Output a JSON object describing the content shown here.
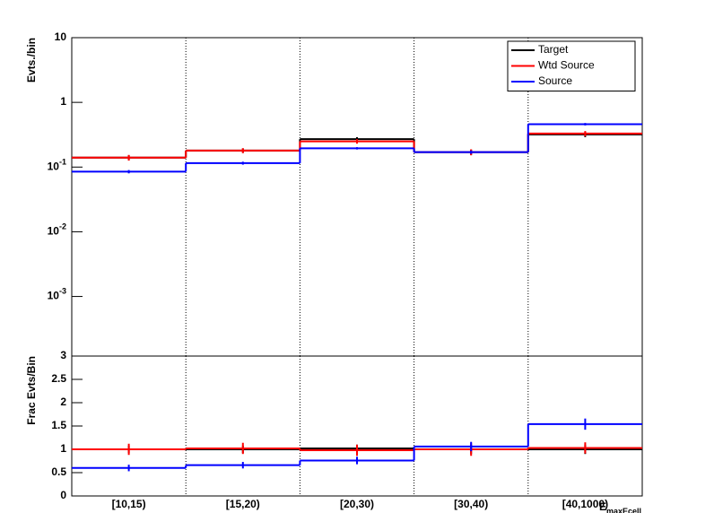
{
  "chart_data": [
    {
      "type": "step",
      "ylabel": "Evts./bin",
      "log_y": true,
      "ylim": [
        0.00012,
        10
      ],
      "yticks": [
        10,
        1,
        {
          "value": 0.1,
          "label": "10",
          "exponent": "-1"
        },
        {
          "value": 0.01,
          "label": "10",
          "exponent": "-2"
        },
        {
          "value": 0.001,
          "label": "10",
          "exponent": "-3"
        }
      ],
      "grid_x": true,
      "legend": "top-right",
      "series": [
        {
          "name": "Target",
          "color": "#000000",
          "values": [
            0.14,
            0.18,
            0.27,
            0.17,
            0.32
          ],
          "errors": [
            0.012,
            0.014,
            0.02,
            0.016,
            0.03
          ]
        },
        {
          "name": "Wtd Source",
          "color": "#ff0000",
          "values": [
            0.14,
            0.18,
            0.25,
            0.17,
            0.33
          ],
          "errors": [
            0.014,
            0.016,
            0.02,
            0.018,
            0.03
          ]
        },
        {
          "name": "Source",
          "color": "#0000ff",
          "values": [
            0.085,
            0.115,
            0.195,
            0.17,
            0.46
          ],
          "errors": [
            0.005,
            0.006,
            0.008,
            0.01,
            0.02
          ]
        }
      ]
    },
    {
      "type": "step",
      "ylabel": "Frac Evts/Bin",
      "log_y": false,
      "ylim": [
        0,
        3
      ],
      "yticks": [
        0,
        0.5,
        1,
        1.5,
        2,
        2.5,
        3
      ],
      "grid_x": true,
      "categories": [
        "[10,15)",
        "[15,20)",
        "[20,30)",
        "[30,40)",
        "[40,1000)"
      ],
      "x_label": "E",
      "x_label_sub": "maxEcell",
      "series": [
        {
          "color": "#000000",
          "values": [
            1,
            1,
            1.02,
            1,
            1
          ],
          "errors": [
            0.08,
            0.08,
            0.08,
            0.1,
            0.1
          ]
        },
        {
          "color": "#ff0000",
          "values": [
            1,
            1.02,
            0.98,
            1,
            1.03
          ],
          "errors": [
            0.12,
            0.12,
            0.12,
            0.14,
            0.12
          ]
        },
        {
          "color": "#0000ff",
          "values": [
            0.6,
            0.66,
            0.76,
            1.06,
            1.54
          ],
          "errors": [
            0.07,
            0.07,
            0.08,
            0.1,
            0.12
          ]
        }
      ]
    }
  ]
}
